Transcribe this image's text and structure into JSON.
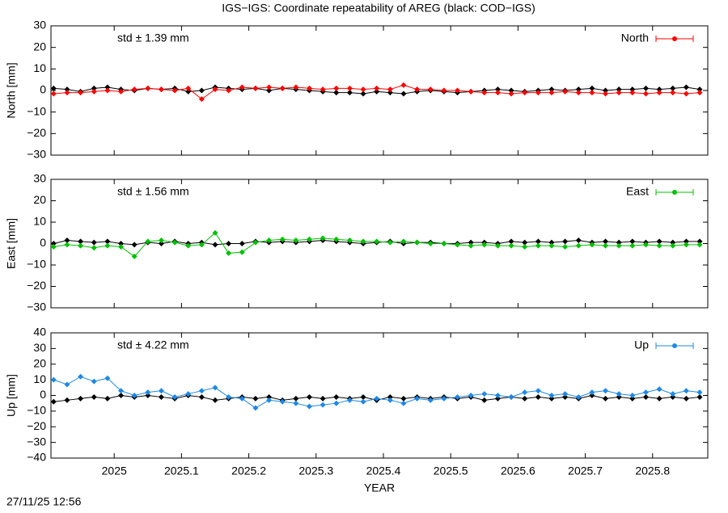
{
  "title": "IGS−IGS: Coordinate repeatability of AREG (black: COD−IGS)",
  "timestamp": "27/11/25 12:56",
  "chart_data": [
    {
      "type": "line",
      "ylabel": "North [mm]",
      "annotation": "std ± 1.39 mm",
      "annotation_color": "#ff0000",
      "legend": "top-right",
      "xlim": [
        2024.906,
        2025.882
      ],
      "xticks": [
        2025,
        2025.1,
        2025.2,
        2025.3,
        2025.4,
        2025.5,
        2025.6,
        2025.7,
        2025.8
      ],
      "ylim": [
        -30,
        30
      ],
      "yticks": [
        {
          "value": -30,
          "label": "−30"
        },
        {
          "value": -20,
          "label": "−20"
        },
        {
          "value": -10,
          "label": "−10"
        },
        0,
        10,
        20,
        30
      ],
      "x": [
        2024.91,
        2024.93,
        2024.95,
        2024.97,
        2024.99,
        2025.01,
        2025.03,
        2025.05,
        2025.07,
        2025.09,
        2025.11,
        2025.13,
        2025.15,
        2025.17,
        2025.19,
        2025.21,
        2025.23,
        2025.25,
        2025.27,
        2025.29,
        2025.31,
        2025.33,
        2025.35,
        2025.37,
        2025.39,
        2025.41,
        2025.43,
        2025.45,
        2025.47,
        2025.49,
        2025.51,
        2025.53,
        2025.55,
        2025.57,
        2025.59,
        2025.61,
        2025.63,
        2025.65,
        2025.67,
        2025.69,
        2025.71,
        2025.73,
        2025.75,
        2025.77,
        2025.79,
        2025.81,
        2025.83,
        2025.85,
        2025.87
      ],
      "series": [
        {
          "color": "#000000",
          "values": [
            1,
            0.5,
            -0.5,
            1,
            1.5,
            0.5,
            0,
            1,
            0.5,
            1,
            -0.5,
            0,
            1.5,
            1,
            0.5,
            1,
            0,
            1,
            0.5,
            0,
            -0.5,
            -1,
            -1,
            -1.5,
            -0.5,
            -1,
            -1.5,
            -0.5,
            0,
            -0.5,
            -1,
            -0.5,
            0,
            0.5,
            0,
            -0.5,
            0,
            0.5,
            0,
            0.5,
            1,
            0,
            0.5,
            0.5,
            1,
            0.5,
            1,
            1.5,
            0.5
          ]
        },
        {
          "name": "North",
          "color": "#ff0000",
          "values": [
            -1.5,
            -1,
            -1,
            -0.5,
            0,
            -0.5,
            0.5,
            1,
            0.5,
            0,
            1,
            -4,
            0.5,
            0,
            1.5,
            1,
            1.5,
            1,
            1.5,
            1,
            0.5,
            1,
            1,
            0.5,
            1,
            0.5,
            2.5,
            0.5,
            0.5,
            0,
            0,
            -0.5,
            -1,
            -1,
            -1.5,
            -1,
            -1,
            -1,
            -0.5,
            -1,
            -1,
            -1.5,
            -1,
            -1,
            -1.5,
            -1,
            -1,
            -1.5,
            -1
          ]
        }
      ]
    },
    {
      "type": "line",
      "ylabel": "East [mm]",
      "annotation": "std ± 1.56 mm",
      "annotation_color": "#00c000",
      "legend": "top-right",
      "xlim": [
        2024.906,
        2025.882
      ],
      "xticks": [
        2025,
        2025.1,
        2025.2,
        2025.3,
        2025.4,
        2025.5,
        2025.6,
        2025.7,
        2025.8
      ],
      "ylim": [
        -30,
        30
      ],
      "yticks": [
        {
          "value": -30,
          "label": "−30"
        },
        {
          "value": -20,
          "label": "−20"
        },
        {
          "value": -10,
          "label": "−10"
        },
        0,
        10,
        20,
        30
      ],
      "x": [
        2024.91,
        2024.93,
        2024.95,
        2024.97,
        2024.99,
        2025.01,
        2025.03,
        2025.05,
        2025.07,
        2025.09,
        2025.11,
        2025.13,
        2025.15,
        2025.17,
        2025.19,
        2025.21,
        2025.23,
        2025.25,
        2025.27,
        2025.29,
        2025.31,
        2025.33,
        2025.35,
        2025.37,
        2025.39,
        2025.41,
        2025.43,
        2025.45,
        2025.47,
        2025.49,
        2025.51,
        2025.53,
        2025.55,
        2025.57,
        2025.59,
        2025.61,
        2025.63,
        2025.65,
        2025.67,
        2025.69,
        2025.71,
        2025.73,
        2025.75,
        2025.77,
        2025.79,
        2025.81,
        2025.83,
        2025.85,
        2025.87
      ],
      "series": [
        {
          "color": "#000000",
          "values": [
            0,
            1.5,
            1,
            0.5,
            1,
            0,
            -0.5,
            0.5,
            0,
            1,
            0,
            0.5,
            -0.5,
            0,
            0,
            1,
            0.5,
            1,
            0.5,
            1,
            1.5,
            1,
            0.5,
            0,
            0.5,
            1,
            0,
            0.5,
            0.5,
            0,
            0,
            0.5,
            0.5,
            0,
            1,
            0.5,
            1,
            0.5,
            1,
            1.5,
            0.5,
            1,
            0.5,
            1,
            0.5,
            1,
            0.5,
            1,
            1
          ]
        },
        {
          "name": "East",
          "color": "#00c000",
          "values": [
            -1.5,
            -0.5,
            -1,
            -2,
            -1,
            -1.5,
            -6,
            1,
            1.5,
            0.5,
            -1,
            -0.5,
            5,
            -4.5,
            -4,
            0.5,
            1.5,
            2,
            1.5,
            2,
            2.5,
            2,
            1.5,
            1,
            1,
            0.5,
            1,
            0.5,
            0,
            0,
            -0.5,
            -1,
            -0.5,
            -1,
            -1,
            -1.5,
            -1,
            -1,
            -1.5,
            -1,
            -0.5,
            -1,
            -1,
            -1,
            -0.5,
            -1,
            -1,
            -0.5,
            -0.5
          ]
        }
      ]
    },
    {
      "type": "line",
      "ylabel": "Up [mm]",
      "xlabel": "YEAR",
      "annotation": "std ± 4.22 mm",
      "annotation_color": "#1e88e5",
      "legend": "top-right",
      "xlim": [
        2024.906,
        2025.882
      ],
      "xticks": [
        2025,
        2025.1,
        2025.2,
        2025.3,
        2025.4,
        2025.5,
        2025.6,
        2025.7,
        2025.8
      ],
      "ylim": [
        -40,
        40
      ],
      "yticks": [
        {
          "value": -40,
          "label": "−40"
        },
        {
          "value": -30,
          "label": "−30"
        },
        {
          "value": -20,
          "label": "−20"
        },
        {
          "value": -10,
          "label": "−10"
        },
        0,
        10,
        20,
        30,
        40
      ],
      "x": [
        2024.91,
        2024.93,
        2024.95,
        2024.97,
        2024.99,
        2025.01,
        2025.03,
        2025.05,
        2025.07,
        2025.09,
        2025.11,
        2025.13,
        2025.15,
        2025.17,
        2025.19,
        2025.21,
        2025.23,
        2025.25,
        2025.27,
        2025.29,
        2025.31,
        2025.33,
        2025.35,
        2025.37,
        2025.39,
        2025.41,
        2025.43,
        2025.45,
        2025.47,
        2025.49,
        2025.51,
        2025.53,
        2025.55,
        2025.57,
        2025.59,
        2025.61,
        2025.63,
        2025.65,
        2025.67,
        2025.69,
        2025.71,
        2025.73,
        2025.75,
        2025.77,
        2025.79,
        2025.81,
        2025.83,
        2025.85,
        2025.87
      ],
      "series": [
        {
          "color": "#000000",
          "values": [
            -4,
            -3,
            -2,
            -1,
            -2,
            0,
            -1,
            0,
            -1,
            -2,
            0,
            -1,
            -3,
            -2,
            -1,
            -2,
            -1,
            -3,
            -2,
            -1,
            -2,
            -1,
            -2,
            -1,
            -3,
            -1,
            -2,
            -1,
            -2,
            -1,
            -2,
            -1,
            -3,
            -2,
            -1,
            -2,
            -1,
            -2,
            -1,
            -2,
            0,
            -2,
            -1,
            -2,
            -1,
            -2,
            -1,
            -2,
            -1
          ]
        },
        {
          "name": "Up",
          "color": "#1e88e5",
          "values": [
            10,
            7,
            12,
            9,
            11,
            3,
            0,
            2,
            3,
            -1,
            1,
            3,
            5,
            -1,
            -2,
            -8,
            -3,
            -4,
            -5,
            -7,
            -6,
            -5,
            -3,
            -4,
            -2,
            -3,
            -5,
            -2,
            -3,
            -2,
            -1,
            0,
            1,
            0,
            -1,
            2,
            3,
            0,
            1,
            -1,
            2,
            3,
            1,
            0,
            2,
            4,
            1,
            3,
            2
          ]
        }
      ]
    }
  ]
}
